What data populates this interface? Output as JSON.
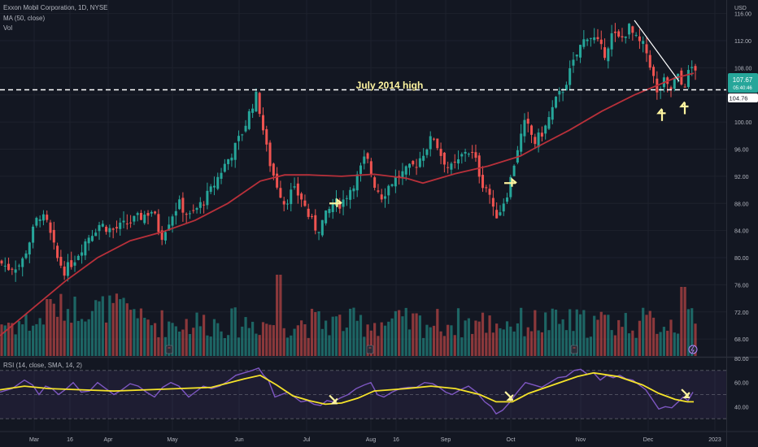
{
  "legend": {
    "symbol_line": "Exxon Mobil Corporation, 1D, NYSE",
    "ma_line": "MA (50, close)",
    "vol_line": "Vol",
    "rsi_line": "RSI (14, close, SMA, 14, 2)"
  },
  "currency": "USD",
  "annotation": "July 2014 high",
  "price_badge": {
    "value": "107.67",
    "countdown": "05:40:46"
  },
  "level_badge": "104.76",
  "colors": {
    "background": "#131722",
    "up": "#26a69a",
    "down": "#ef5350",
    "ma": "#b8303a",
    "rsi": "#7e57c2",
    "rsi_ma": "#f5e32a",
    "level_line": "#ffffff",
    "trend_line": "#ffffff",
    "arrow": "#fff5a0"
  },
  "chart_data": {
    "type": "candlestick",
    "price_axis": {
      "ticks": [
        68,
        72,
        76,
        80,
        84,
        88,
        92,
        96,
        100,
        104,
        108,
        112,
        116
      ],
      "ylim": [
        65.5,
        118
      ]
    },
    "rsi_axis": {
      "ticks": [
        40,
        60,
        80
      ],
      "ylim": [
        20,
        80
      ],
      "band": [
        30,
        70
      ]
    },
    "x_ticks": [
      "Mar",
      "16",
      "Apr",
      "May",
      "Jun",
      "Jul",
      "Aug",
      "16",
      "Sep",
      "Oct",
      "Nov",
      "Dec",
      "2023"
    ],
    "level": 104.76,
    "last_close": 107.67,
    "price_path": [
      [
        0,
        79.5
      ],
      [
        12,
        78.5
      ],
      [
        28,
        79
      ],
      [
        40,
        83
      ],
      [
        50,
        86.5
      ],
      [
        60,
        85
      ],
      [
        72,
        80
      ],
      [
        82,
        78
      ],
      [
        95,
        80
      ],
      [
        110,
        83
      ],
      [
        125,
        85
      ],
      [
        140,
        84
      ],
      [
        158,
        85
      ],
      [
        175,
        86
      ],
      [
        190,
        87
      ],
      [
        200,
        83
      ],
      [
        212,
        86
      ],
      [
        222,
        88
      ],
      [
        235,
        86
      ],
      [
        250,
        88
      ],
      [
        262,
        90
      ],
      [
        275,
        93
      ],
      [
        290,
        96
      ],
      [
        302,
        99
      ],
      [
        312,
        102.5
      ],
      [
        318,
        104
      ],
      [
        324,
        100
      ],
      [
        330,
        96
      ],
      [
        336,
        93
      ],
      [
        342,
        91
      ],
      [
        352,
        88
      ],
      [
        362,
        90
      ],
      [
        372,
        89
      ],
      [
        382,
        86
      ],
      [
        392,
        84
      ],
      [
        402,
        86
      ],
      [
        412,
        88
      ],
      [
        422,
        88
      ],
      [
        432,
        90
      ],
      [
        442,
        92
      ],
      [
        452,
        95
      ],
      [
        462,
        91
      ],
      [
        472,
        89
      ],
      [
        482,
        91
      ],
      [
        492,
        92
      ],
      [
        505,
        93
      ],
      [
        515,
        94
      ],
      [
        525,
        96
      ],
      [
        535,
        98
      ],
      [
        545,
        95
      ],
      [
        555,
        93
      ],
      [
        565,
        94
      ],
      [
        575,
        96
      ],
      [
        585,
        95
      ],
      [
        595,
        91
      ],
      [
        603,
        90
      ],
      [
        610,
        86
      ],
      [
        617,
        87
      ],
      [
        627,
        90
      ],
      [
        638,
        96
      ],
      [
        648,
        100
      ],
      [
        660,
        97
      ],
      [
        672,
        99
      ],
      [
        685,
        103
      ],
      [
        695,
        105
      ],
      [
        705,
        108
      ],
      [
        715,
        111
      ],
      [
        725,
        113
      ],
      [
        735,
        112
      ],
      [
        745,
        110
      ],
      [
        755,
        113
      ],
      [
        765,
        112
      ],
      [
        775,
        114
      ],
      [
        785,
        112
      ],
      [
        795,
        111
      ],
      [
        803,
        108
      ],
      [
        810,
        104
      ],
      [
        818,
        106
      ],
      [
        826,
        104.5
      ],
      [
        834,
        107
      ],
      [
        842,
        105
      ],
      [
        848,
        107
      ],
      [
        853,
        108
      ]
    ],
    "ma50_path": [
      [
        0,
        68.5
      ],
      [
        40,
        72.5
      ],
      [
        80,
        76.5
      ],
      [
        120,
        80
      ],
      [
        160,
        82.5
      ],
      [
        200,
        83.8
      ],
      [
        240,
        85.5
      ],
      [
        280,
        88
      ],
      [
        320,
        91.3
      ],
      [
        350,
        92.2
      ],
      [
        380,
        92.2
      ],
      [
        420,
        92
      ],
      [
        460,
        92.3
      ],
      [
        500,
        91.7
      ],
      [
        520,
        91
      ],
      [
        560,
        92.4
      ],
      [
        600,
        93.5
      ],
      [
        640,
        95
      ],
      [
        660,
        96.3
      ],
      [
        700,
        98.8
      ],
      [
        740,
        101.6
      ],
      [
        780,
        104
      ],
      [
        810,
        105.5
      ],
      [
        830,
        106.5
      ],
      [
        853,
        107.2
      ]
    ],
    "rsi_path": [
      [
        0,
        52
      ],
      [
        15,
        55
      ],
      [
        30,
        62
      ],
      [
        40,
        58
      ],
      [
        48,
        50
      ],
      [
        56,
        57
      ],
      [
        64,
        55
      ],
      [
        72,
        50
      ],
      [
        80,
        54
      ],
      [
        90,
        60
      ],
      [
        100,
        52
      ],
      [
        110,
        53
      ],
      [
        120,
        60
      ],
      [
        130,
        55
      ],
      [
        140,
        50
      ],
      [
        150,
        54
      ],
      [
        160,
        59
      ],
      [
        170,
        57
      ],
      [
        180,
        52
      ],
      [
        190,
        48
      ],
      [
        200,
        56
      ],
      [
        210,
        60
      ],
      [
        220,
        57
      ],
      [
        232,
        48
      ],
      [
        240,
        52
      ],
      [
        250,
        57
      ],
      [
        260,
        55
      ],
      [
        270,
        57
      ],
      [
        280,
        61
      ],
      [
        290,
        66
      ],
      [
        300,
        68
      ],
      [
        310,
        70
      ],
      [
        318,
        72
      ],
      [
        324,
        66
      ],
      [
        330,
        62
      ],
      [
        338,
        48
      ],
      [
        346,
        50
      ],
      [
        354,
        52
      ],
      [
        362,
        48
      ],
      [
        370,
        44
      ],
      [
        378,
        45
      ],
      [
        386,
        42
      ],
      [
        394,
        41
      ],
      [
        402,
        45
      ],
      [
        410,
        44
      ],
      [
        418,
        47
      ],
      [
        428,
        50
      ],
      [
        438,
        55
      ],
      [
        448,
        58
      ],
      [
        456,
        60
      ],
      [
        464,
        50
      ],
      [
        472,
        48
      ],
      [
        482,
        52
      ],
      [
        492,
        55
      ],
      [
        502,
        56
      ],
      [
        512,
        56
      ],
      [
        522,
        60
      ],
      [
        532,
        59
      ],
      [
        540,
        56
      ],
      [
        548,
        52
      ],
      [
        556,
        50
      ],
      [
        566,
        54
      ],
      [
        576,
        57
      ],
      [
        586,
        52
      ],
      [
        596,
        44
      ],
      [
        604,
        40
      ],
      [
        610,
        34
      ],
      [
        618,
        37
      ],
      [
        626,
        43
      ],
      [
        636,
        52
      ],
      [
        646,
        60
      ],
      [
        656,
        58
      ],
      [
        666,
        56
      ],
      [
        676,
        60
      ],
      [
        686,
        64
      ],
      [
        696,
        65
      ],
      [
        706,
        70
      ],
      [
        714,
        71
      ],
      [
        722,
        67
      ],
      [
        730,
        68
      ],
      [
        738,
        62
      ],
      [
        746,
        66
      ],
      [
        754,
        64
      ],
      [
        762,
        66
      ],
      [
        770,
        63
      ],
      [
        778,
        62
      ],
      [
        786,
        58
      ],
      [
        794,
        54
      ],
      [
        802,
        46
      ],
      [
        810,
        38
      ],
      [
        818,
        40
      ],
      [
        826,
        39
      ],
      [
        834,
        44
      ],
      [
        840,
        48
      ],
      [
        846,
        45
      ],
      [
        852,
        52
      ]
    ],
    "rsi_ma_path": [
      [
        0,
        54
      ],
      [
        30,
        57
      ],
      [
        60,
        55
      ],
      [
        100,
        54
      ],
      [
        140,
        53
      ],
      [
        180,
        54
      ],
      [
        220,
        55
      ],
      [
        260,
        56
      ],
      [
        300,
        63
      ],
      [
        320,
        66
      ],
      [
        340,
        58
      ],
      [
        360,
        49
      ],
      [
        380,
        45
      ],
      [
        400,
        42
      ],
      [
        420,
        43
      ],
      [
        440,
        47
      ],
      [
        460,
        53
      ],
      [
        480,
        54
      ],
      [
        500,
        55
      ],
      [
        530,
        57
      ],
      [
        560,
        55
      ],
      [
        590,
        50
      ],
      [
        610,
        44
      ],
      [
        630,
        44
      ],
      [
        650,
        51
      ],
      [
        680,
        58
      ],
      [
        710,
        65
      ],
      [
        730,
        68
      ],
      [
        760,
        65
      ],
      [
        790,
        58
      ],
      [
        810,
        51
      ],
      [
        830,
        46
      ],
      [
        845,
        44
      ],
      [
        853,
        44
      ]
    ],
    "trend_line": [
      [
        780,
        115
      ],
      [
        835,
        106
      ]
    ],
    "arrows_price": [
      {
        "x": 412,
        "price": 88,
        "dir": "right"
      },
      {
        "x": 627,
        "price": 91,
        "dir": "right"
      },
      {
        "x": 814,
        "price": 101,
        "dir": "up"
      },
      {
        "x": 842,
        "price": 102,
        "dir": "up"
      }
    ],
    "arrows_rsi": [
      {
        "x": 410,
        "rsi": 46,
        "dir": "down"
      },
      {
        "x": 626,
        "rsi": 49,
        "dir": "down"
      },
      {
        "x": 843,
        "rsi": 51,
        "dir": "down"
      }
    ]
  }
}
